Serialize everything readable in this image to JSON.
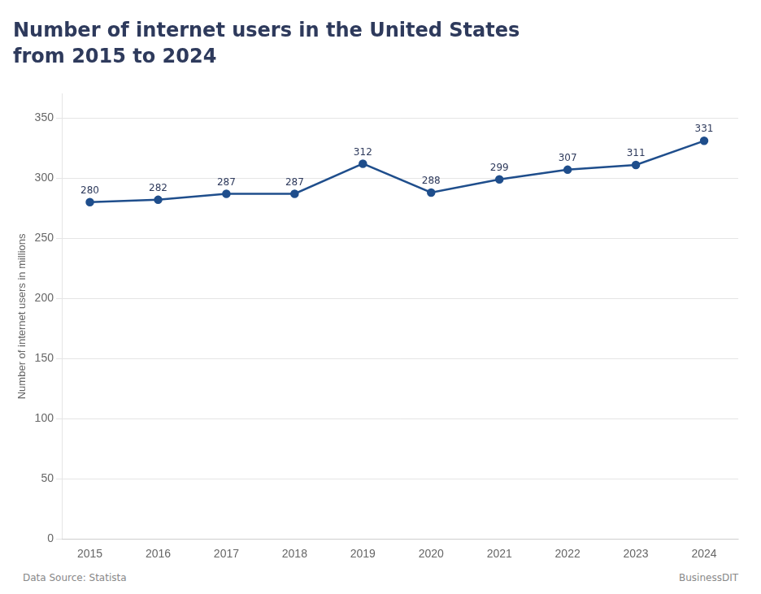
{
  "chart_data": {
    "type": "line",
    "title": "Number of internet users in the United States",
    "subtitle": "from 2015 to 2024",
    "ylabel": "Number of internet users in millions",
    "x": [
      2015,
      2016,
      2017,
      2018,
      2019,
      2020,
      2021,
      2022,
      2023,
      2024
    ],
    "values": [
      280,
      282,
      287,
      287,
      312,
      288,
      299,
      307,
      311,
      331
    ],
    "color": "#1f4e8c",
    "marker": "circle",
    "xlim": [
      2014.6,
      2024.5
    ],
    "xticks": [
      2015,
      2016,
      2017,
      2018,
      2019,
      2020,
      2021,
      2022,
      2023,
      2024
    ],
    "ylim": [
      0,
      370
    ],
    "yticks": [
      0,
      50,
      100,
      150,
      200,
      250,
      300,
      350
    ],
    "grid": "y",
    "data_labels": true,
    "annotations": [
      "Data Source: Statista",
      "BusinessDIT"
    ]
  }
}
